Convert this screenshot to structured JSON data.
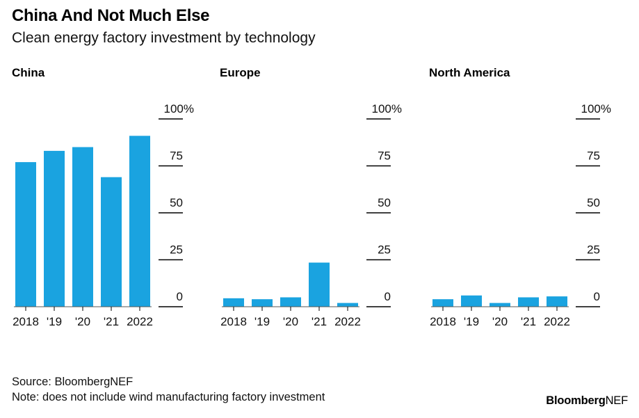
{
  "title": "China And Not Much Else",
  "subtitle": "Clean energy factory investment by technology",
  "source": "Source: BloombergNEF",
  "note": "Note: does not include wind manufacturing factory investment",
  "brand": {
    "bold": "Bloomberg",
    "regular": "NEF"
  },
  "colors": {
    "bar": "#1aa3e0",
    "axis": "#000000"
  },
  "chart_data": [
    {
      "type": "bar",
      "panel_title": "China",
      "categories": [
        "2018",
        "'19",
        "'20",
        "'21",
        "2022"
      ],
      "values": [
        77,
        83,
        85,
        69,
        91
      ],
      "ylim": [
        0,
        100
      ],
      "yticks": [
        "0",
        "25",
        "50",
        "75",
        "100%"
      ],
      "grid": false
    },
    {
      "type": "bar",
      "panel_title": "Europe",
      "categories": [
        "2018",
        "'19",
        "'20",
        "'21",
        "2022"
      ],
      "values": [
        4.5,
        4,
        5,
        23.5,
        2
      ],
      "ylim": [
        0,
        100
      ],
      "yticks": [
        "0",
        "25",
        "50",
        "75",
        "100%"
      ],
      "grid": false
    },
    {
      "type": "bar",
      "panel_title": "North America",
      "categories": [
        "2018",
        "'19",
        "'20",
        "'21",
        "2022"
      ],
      "values": [
        4,
        6,
        2,
        5,
        5.5
      ],
      "ylim": [
        0,
        100
      ],
      "yticks": [
        "0",
        "25",
        "50",
        "75",
        "100%"
      ],
      "grid": false
    }
  ]
}
